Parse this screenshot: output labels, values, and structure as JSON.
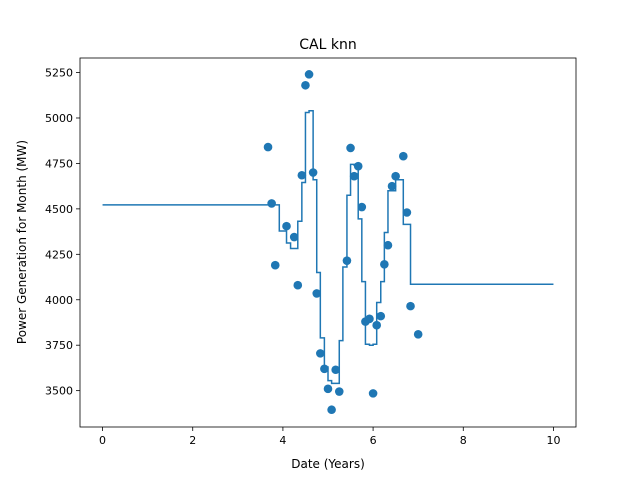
{
  "chart_data": {
    "type": "scatter",
    "title": "CAL knn",
    "xlabel": "Date (Years)",
    "ylabel": "Power Generation for Month (MW)",
    "xlim": [
      -0.5,
      10.5
    ],
    "ylim": [
      3300,
      5330
    ],
    "x_ticks": [
      0,
      2,
      4,
      6,
      8,
      10
    ],
    "y_ticks": [
      3500,
      3750,
      4000,
      4250,
      4500,
      4750,
      5000,
      5250
    ],
    "grid": false,
    "legend": "none",
    "colors": {
      "series": "#1f77b4",
      "axes": "#000000",
      "background": "#ffffff"
    },
    "series": [
      {
        "kind": "scatter",
        "points": [
          [
            3.67,
            4840
          ],
          [
            3.75,
            4530
          ],
          [
            3.83,
            4190
          ],
          [
            4.08,
            4405
          ],
          [
            4.25,
            4345
          ],
          [
            4.33,
            4080
          ],
          [
            4.42,
            4685
          ],
          [
            4.5,
            5180
          ],
          [
            4.58,
            5240
          ],
          [
            4.67,
            4700
          ],
          [
            4.75,
            4035
          ],
          [
            4.83,
            3705
          ],
          [
            4.92,
            3620
          ],
          [
            5.0,
            3510
          ],
          [
            5.08,
            3395
          ],
          [
            5.17,
            3615
          ],
          [
            5.25,
            3495
          ],
          [
            5.42,
            4215
          ],
          [
            5.5,
            4835
          ],
          [
            5.58,
            4680
          ],
          [
            5.67,
            4735
          ],
          [
            5.75,
            4510
          ],
          [
            5.83,
            3880
          ],
          [
            5.92,
            3895
          ],
          [
            6.0,
            3485
          ],
          [
            6.08,
            3860
          ],
          [
            6.17,
            3910
          ],
          [
            6.25,
            4195
          ],
          [
            6.33,
            4300
          ],
          [
            6.42,
            4625
          ],
          [
            6.5,
            4680
          ],
          [
            6.67,
            4790
          ],
          [
            6.75,
            4480
          ],
          [
            6.83,
            3965
          ],
          [
            7.0,
            3810
          ]
        ]
      },
      {
        "kind": "step",
        "points": [
          [
            0.0,
            4522
          ],
          [
            3.75,
            4522
          ],
          [
            3.83,
            4522
          ],
          [
            3.92,
            4378
          ],
          [
            4.08,
            4312
          ],
          [
            4.17,
            4282
          ],
          [
            4.33,
            4432
          ],
          [
            4.42,
            4645
          ],
          [
            4.5,
            5030
          ],
          [
            4.58,
            5040
          ],
          [
            4.67,
            4660
          ],
          [
            4.75,
            4150
          ],
          [
            4.83,
            3790
          ],
          [
            4.92,
            3630
          ],
          [
            5.0,
            3555
          ],
          [
            5.08,
            3540
          ],
          [
            5.17,
            3540
          ],
          [
            5.25,
            3775
          ],
          [
            5.33,
            4180
          ],
          [
            5.42,
            4575
          ],
          [
            5.5,
            4745
          ],
          [
            5.58,
            4740
          ],
          [
            5.67,
            4445
          ],
          [
            5.75,
            4100
          ],
          [
            5.83,
            3755
          ],
          [
            5.92,
            3750
          ],
          [
            6.0,
            3755
          ],
          [
            6.08,
            3985
          ],
          [
            6.17,
            4100
          ],
          [
            6.25,
            4370
          ],
          [
            6.33,
            4600
          ],
          [
            6.5,
            4660
          ],
          [
            6.67,
            4415
          ],
          [
            6.75,
            4415
          ],
          [
            6.83,
            4085
          ],
          [
            10.0,
            4085
          ]
        ]
      }
    ]
  }
}
